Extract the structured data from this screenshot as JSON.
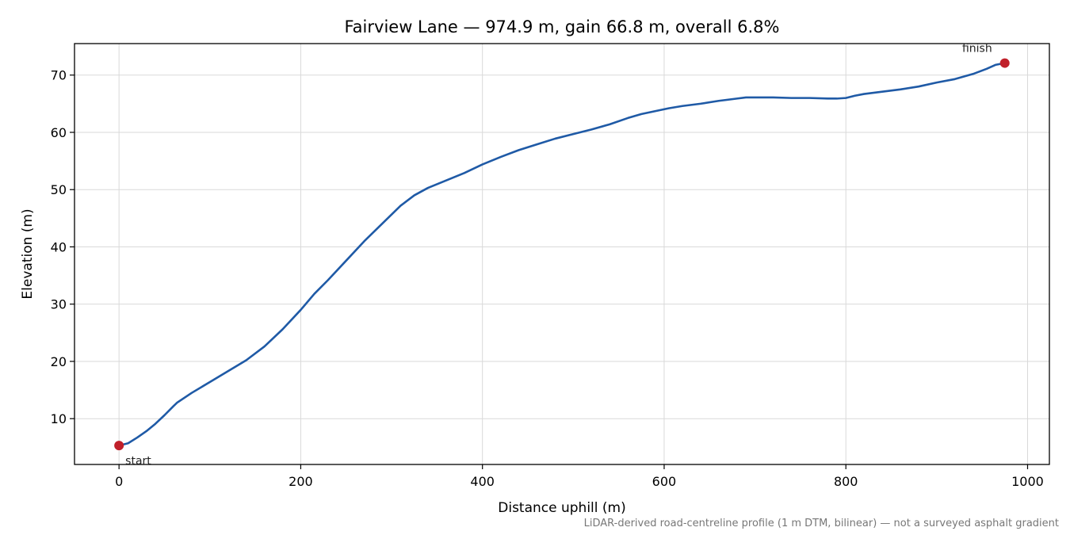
{
  "chart_data": {
    "type": "line",
    "title": "Fairview Lane — 974.9 m, gain 66.8 m, overall 6.8%",
    "xlabel": "Distance uphill (m)",
    "ylabel": "Elevation (m)",
    "footnote": "LiDAR-derived road-centreline profile (1 m DTM, bilinear) — not a surveyed asphalt gradient",
    "xlim": [
      -49,
      1024
    ],
    "ylim": [
      2,
      75.5
    ],
    "x_ticks": [
      0,
      200,
      400,
      600,
      800,
      1000
    ],
    "y_ticks": [
      10,
      20,
      30,
      40,
      50,
      60,
      70
    ],
    "grid": true,
    "line_color": "#1f5aa6",
    "marker_color": "#c0202a",
    "series": [
      {
        "x": [
          0,
          10,
          20,
          30,
          40,
          50,
          60,
          64,
          80,
          100,
          120,
          140,
          160,
          180,
          200,
          215,
          230,
          250,
          270,
          290,
          310,
          325,
          340,
          360,
          380,
          400,
          420,
          440,
          460,
          480,
          500,
          520,
          540,
          560,
          575,
          590,
          605,
          620,
          640,
          660,
          680,
          690,
          700,
          720,
          740,
          760,
          780,
          790,
          800,
          810,
          820,
          840,
          860,
          880,
          900,
          920,
          940,
          955,
          965,
          974.9
        ],
        "y": [
          5.3,
          5.7,
          6.7,
          7.8,
          9.1,
          10.6,
          12.2,
          12.8,
          14.5,
          16.4,
          18.3,
          20.2,
          22.6,
          25.6,
          29.0,
          31.8,
          34.2,
          37.6,
          41.0,
          44.1,
          47.2,
          49.0,
          50.3,
          51.6,
          52.9,
          54.4,
          55.7,
          56.9,
          57.9,
          58.9,
          59.7,
          60.5,
          61.4,
          62.5,
          63.2,
          63.7,
          64.2,
          64.6,
          65.0,
          65.5,
          65.9,
          66.1,
          66.1,
          66.1,
          66.0,
          66.0,
          65.9,
          65.9,
          66.0,
          66.4,
          66.7,
          67.1,
          67.5,
          68.0,
          68.7,
          69.3,
          70.2,
          71.1,
          71.8,
          72.1
        ]
      }
    ],
    "annotations": [
      {
        "text": "start",
        "x": 0,
        "y": 5.3
      },
      {
        "text": "finish",
        "x": 974.9,
        "y": 72.1
      }
    ]
  }
}
